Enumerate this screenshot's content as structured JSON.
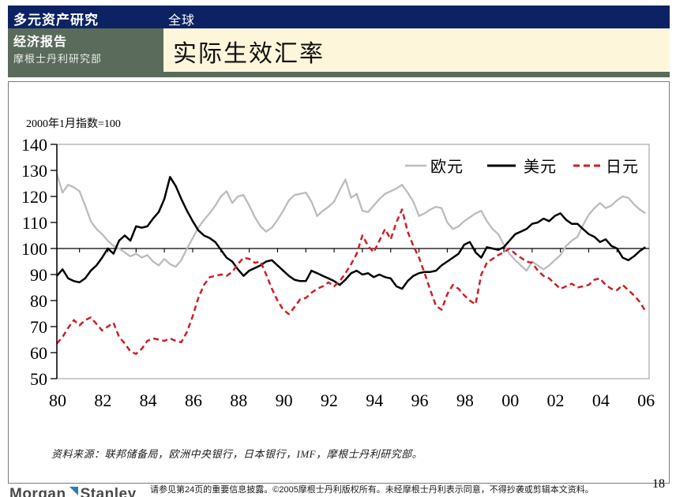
{
  "header": {
    "top_bar": {
      "left_title": "多元资产研究",
      "region": "全球",
      "bg_color": "#0d2263"
    },
    "sub_bar": {
      "report_type": "经济报告",
      "department": "摩根士丹利研究部",
      "bg_color": "#5a6b5c"
    },
    "title": {
      "text": "实际生效汇率",
      "bg_color": "#fdf6da"
    }
  },
  "chart_data": {
    "type": "line",
    "title": "实际生效汇率",
    "unit_label": "2000年1月指数=100",
    "x_start": 1980,
    "x_step": 0.25,
    "x_range": [
      1980,
      2006
    ],
    "x_tick_labels": [
      "80",
      "82",
      "84",
      "86",
      "88",
      "90",
      "92",
      "94",
      "96",
      "98",
      "00",
      "02",
      "04",
      "06"
    ],
    "ylim": [
      50,
      140
    ],
    "y_ticks": [
      50,
      60,
      70,
      80,
      90,
      100,
      110,
      120,
      130,
      140
    ],
    "axis_cross_value": 100,
    "grid": false,
    "legend_position": "top-right",
    "series": [
      {
        "name": "欧元",
        "color": "#bcbcbc",
        "style": "solid",
        "values": [
          128.5,
          121.5,
          124.5,
          123.5,
          122,
          116.5,
          110.5,
          107.5,
          105.5,
          103,
          101,
          100,
          98.5,
          97,
          98,
          96.5,
          97.5,
          95,
          93.5,
          96,
          94,
          93,
          95.5,
          100,
          104,
          108,
          111,
          113.5,
          116.5,
          120,
          122,
          117.5,
          120,
          120.5,
          116.5,
          112,
          108.5,
          106.5,
          108,
          111,
          114.5,
          118.5,
          120.5,
          121,
          121.5,
          118,
          112.5,
          114.5,
          116,
          118,
          122.5,
          126.5,
          119.5,
          121,
          114.5,
          114,
          116.5,
          119,
          121,
          122,
          123,
          124.5,
          121.5,
          118,
          112.5,
          113.5,
          115,
          116,
          115.5,
          110,
          107.5,
          108.5,
          110.5,
          112,
          113.5,
          114.5,
          110.5,
          107.5,
          105.5,
          101.5,
          98,
          95.5,
          93.5,
          91.5,
          95,
          93.5,
          92,
          93.5,
          95.5,
          97.5,
          101,
          103,
          104.5,
          109,
          113,
          115.5,
          117.5,
          115.5,
          116.5,
          118.5,
          120,
          119.5,
          117,
          115,
          113.5
        ]
      },
      {
        "name": "美元",
        "color": "#000000",
        "style": "solid",
        "values": [
          89.5,
          92,
          88.5,
          87.5,
          87,
          88.5,
          91.5,
          93.5,
          96.5,
          100,
          98,
          103,
          105,
          103,
          108.5,
          108,
          108.5,
          111.5,
          114,
          119,
          127.5,
          124,
          119,
          114.5,
          110.5,
          107,
          105,
          104,
          102.5,
          99.5,
          96.5,
          95,
          92,
          89.5,
          91.5,
          92.5,
          93.5,
          95,
          95.5,
          93.5,
          91.5,
          89.5,
          88,
          87.5,
          87.5,
          91.5,
          90.5,
          89.5,
          88.5,
          87.5,
          86,
          88,
          90.5,
          91.5,
          90,
          90.5,
          89,
          90,
          89,
          88.5,
          85.5,
          84.5,
          87.5,
          89.5,
          90.5,
          91,
          91,
          91.5,
          93.5,
          95,
          96.5,
          98,
          101.5,
          102.5,
          98.5,
          96.5,
          100.5,
          100,
          99.5,
          100.5,
          103,
          105.5,
          106.5,
          107.5,
          109.5,
          110,
          111.5,
          110.5,
          112.5,
          113.5,
          111,
          109.5,
          109.5,
          107.5,
          105.5,
          104.5,
          102.5,
          103.5,
          101,
          100,
          96.5,
          95.5,
          97,
          99,
          100.5
        ]
      },
      {
        "name": "日元",
        "color": "#cd2026",
        "style": "dashed",
        "values": [
          63.5,
          66,
          69.5,
          72.5,
          70.5,
          72.5,
          73.5,
          71,
          68.5,
          70,
          71.5,
          66,
          63.5,
          60.5,
          59.5,
          61.5,
          64.5,
          65.5,
          65,
          64.5,
          65.5,
          64.5,
          64,
          68,
          74,
          81,
          86,
          89,
          89.5,
          90,
          89.5,
          91,
          94,
          96.5,
          96,
          94.5,
          95,
          90,
          84.5,
          80,
          76.5,
          74.8,
          77.5,
          80.5,
          81,
          83,
          84.5,
          85.5,
          87,
          85.5,
          87.5,
          90.5,
          94,
          98,
          105,
          101,
          98.5,
          103,
          107.5,
          103.5,
          110,
          115,
          106.5,
          101,
          96.5,
          90.5,
          84,
          78,
          76.5,
          82.5,
          86,
          84.5,
          82,
          80,
          78.5,
          90,
          94.5,
          96,
          97.5,
          98.5,
          100,
          98,
          96.5,
          95,
          94.5,
          91.5,
          89.5,
          88.5,
          86.5,
          84.5,
          85.5,
          86.5,
          85,
          85.5,
          86,
          88,
          88.5,
          86,
          84.5,
          84,
          86,
          84,
          82,
          79.5,
          76
        ]
      }
    ]
  },
  "source_note": {
    "text": "资料来源：联邦储备局，欧洲中央银行，日本银行，IMF，摩根士丹利研究部。"
  },
  "footer": {
    "logo": {
      "part1": "Morgan",
      "part2": "Stanley"
    },
    "disclaimer": "请参见第24页的重要信息披露。©2005摩根士丹利版权所有。未经摩根士丹利表示同意，不得抄袭或剪辑本文资料。",
    "page_number": "18"
  }
}
